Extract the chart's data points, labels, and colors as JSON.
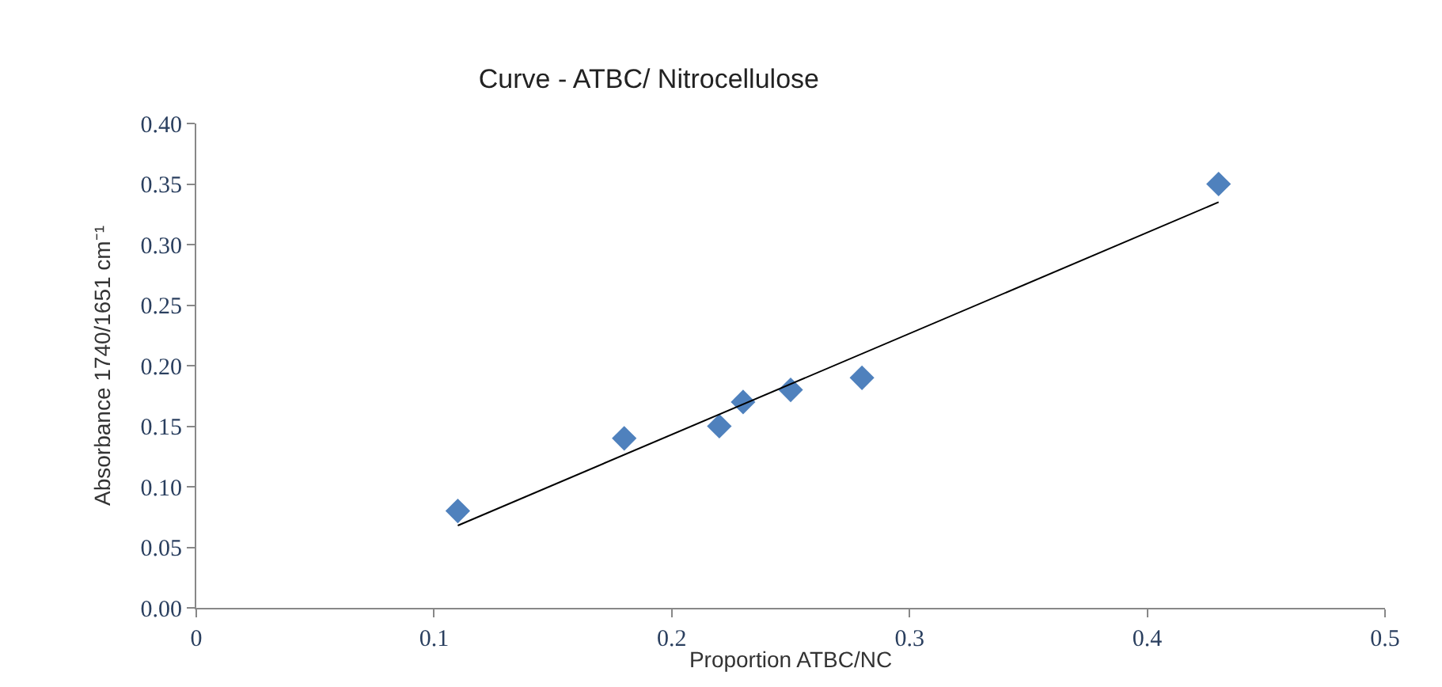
{
  "chart_data": {
    "type": "scatter",
    "title": "Curve - ATBC/ Nitrocellulose",
    "xlabel": "Proportion ATBC/NC",
    "ylabel": "Absorbance 1740/1651 cm⁻¹",
    "x": [
      0.11,
      0.18,
      0.22,
      0.23,
      0.25,
      0.28,
      0.43
    ],
    "series": [
      {
        "color": "#4f81bd",
        "values": [
          0.08,
          0.14,
          0.15,
          0.17,
          0.18,
          0.19,
          0.35
        ],
        "marker": "diamond"
      },
      {
        "type": "line",
        "color": "#000000",
        "x": [
          0.11,
          0.43
        ],
        "values": [
          0.068,
          0.335
        ],
        "marker": "none",
        "line_style": "solid"
      }
    ],
    "xlim": [
      0,
      0.5
    ],
    "xticks": [
      0,
      0.1,
      0.2,
      0.3,
      0.4,
      0.5
    ],
    "ylim": [
      0,
      0.4
    ],
    "yticks": [
      {
        "value": 0,
        "label": "0.00"
      },
      {
        "value": 0.05,
        "label": "0.05"
      },
      {
        "value": 0.1,
        "label": "0.10"
      },
      {
        "value": 0.15,
        "label": "0.15"
      },
      {
        "value": 0.2,
        "label": "0.20"
      },
      {
        "value": 0.25,
        "label": "0.25"
      },
      {
        "value": 0.3,
        "label": "0.30"
      },
      {
        "value": 0.35,
        "label": "0.35"
      },
      {
        "value": 0.4,
        "label": "0.40"
      }
    ]
  }
}
